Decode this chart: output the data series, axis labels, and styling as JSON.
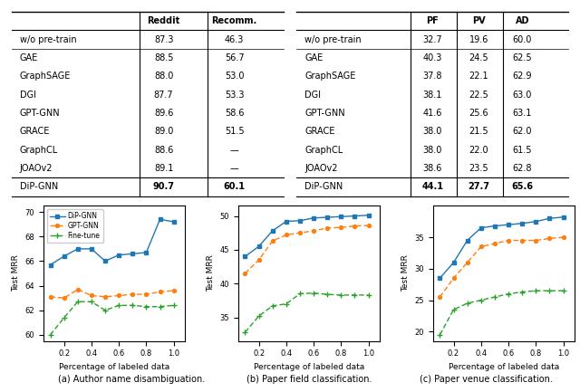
{
  "table1": {
    "headers": [
      "",
      "Reddit",
      "Recomm."
    ],
    "rows": [
      [
        "w/o pre-train",
        "87.3",
        "46.3"
      ],
      [
        "GAE",
        "88.5",
        "56.7"
      ],
      [
        "GraphSAGE",
        "88.0",
        "53.0"
      ],
      [
        "DGI",
        "87.7",
        "53.3"
      ],
      [
        "GPT-GNN",
        "89.6",
        "58.6"
      ],
      [
        "GRACE",
        "89.0",
        "51.5"
      ],
      [
        "GraphCL",
        "88.6",
        "—"
      ],
      [
        "JOAOv2",
        "89.1",
        "—"
      ],
      [
        "DiP-GNN",
        "90.7",
        "60.1"
      ]
    ]
  },
  "table2": {
    "headers": [
      "",
      "PF",
      "PV",
      "AD"
    ],
    "rows": [
      [
        "w/o pre-train",
        "32.7",
        "19.6",
        "60.0"
      ],
      [
        "GAE",
        "40.3",
        "24.5",
        "62.5"
      ],
      [
        "GraphSAGE",
        "37.8",
        "22.1",
        "62.9"
      ],
      [
        "DGI",
        "38.1",
        "22.5",
        "63.0"
      ],
      [
        "GPT-GNN",
        "41.6",
        "25.6",
        "63.1"
      ],
      [
        "GRACE",
        "38.0",
        "21.5",
        "62.0"
      ],
      [
        "GraphCL",
        "38.0",
        "22.0",
        "61.5"
      ],
      [
        "JOAOv2",
        "38.6",
        "23.5",
        "62.8"
      ],
      [
        "DiP-GNN",
        "44.1",
        "27.7",
        "65.6"
      ]
    ]
  },
  "plot_a": {
    "x": [
      0.1,
      0.2,
      0.3,
      0.4,
      0.5,
      0.6,
      0.7,
      0.8,
      0.9,
      1.0
    ],
    "dipgnn": [
      65.7,
      66.4,
      67.0,
      67.0,
      66.0,
      66.5,
      66.6,
      66.7,
      69.4,
      69.2
    ],
    "gptgnn": [
      63.1,
      63.0,
      63.7,
      63.2,
      63.1,
      63.2,
      63.3,
      63.3,
      63.5,
      63.6
    ],
    "finetune": [
      60.0,
      61.4,
      62.7,
      62.7,
      62.0,
      62.4,
      62.4,
      62.3,
      62.3,
      62.4
    ],
    "ylabel": "Test MRR",
    "xlabel": "Percentage of labeled data",
    "ylim": [
      59.5,
      70.5
    ],
    "yticks": [
      60,
      62,
      64,
      66,
      68,
      70
    ],
    "caption": "(a) Author name disambiguation."
  },
  "plot_b": {
    "x": [
      0.1,
      0.2,
      0.3,
      0.4,
      0.5,
      0.6,
      0.7,
      0.8,
      0.9,
      1.0
    ],
    "dipgnn": [
      44.0,
      45.5,
      47.8,
      49.2,
      49.3,
      49.7,
      49.8,
      49.9,
      50.0,
      50.1
    ],
    "gptgnn": [
      41.5,
      43.5,
      46.3,
      47.2,
      47.5,
      47.8,
      48.2,
      48.3,
      48.5,
      48.6
    ],
    "finetune": [
      32.8,
      35.2,
      36.7,
      37.0,
      38.5,
      38.6,
      38.4,
      38.3,
      38.3,
      38.3
    ],
    "ylabel": "Test MRR",
    "xlabel": "Percentage of labeled data",
    "ylim": [
      31.5,
      51.5
    ],
    "yticks": [
      35,
      40,
      45,
      50
    ],
    "caption": "(b) Paper field classification."
  },
  "plot_c": {
    "x": [
      0.1,
      0.2,
      0.3,
      0.4,
      0.5,
      0.6,
      0.7,
      0.8,
      0.9,
      1.0
    ],
    "dipgnn": [
      28.5,
      31.0,
      34.5,
      36.5,
      36.8,
      37.0,
      37.2,
      37.5,
      38.0,
      38.2
    ],
    "gptgnn": [
      25.5,
      28.5,
      31.0,
      33.5,
      34.0,
      34.5,
      34.5,
      34.5,
      34.8,
      35.0
    ],
    "finetune": [
      19.5,
      23.5,
      24.5,
      25.0,
      25.5,
      26.0,
      26.3,
      26.5,
      26.5,
      26.5
    ],
    "ylabel": "Test MRR",
    "xlabel": "Percentage of labeled data",
    "ylim": [
      18.5,
      40
    ],
    "yticks": [
      20,
      25,
      30,
      35
    ],
    "caption": "(c) Paper venue classification."
  },
  "colors": {
    "dipgnn": "#1f77b4",
    "gptgnn": "#ff7f0e",
    "finetune": "#2ca02c"
  }
}
